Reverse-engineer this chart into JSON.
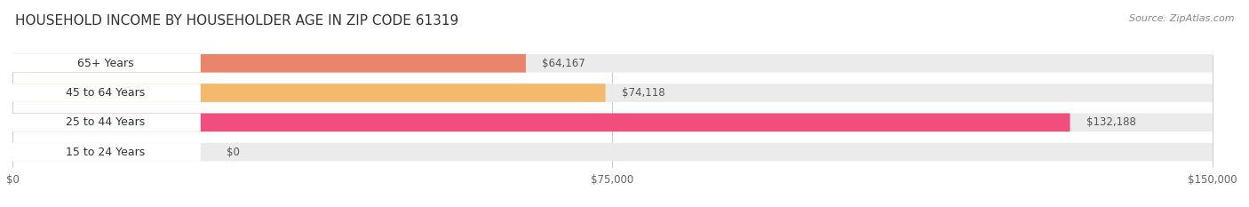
{
  "title": "HOUSEHOLD INCOME BY HOUSEHOLDER AGE IN ZIP CODE 61319",
  "source": "Source: ZipAtlas.com",
  "categories": [
    "15 to 24 Years",
    "25 to 44 Years",
    "45 to 64 Years",
    "65+ Years"
  ],
  "values": [
    0,
    132188,
    74118,
    64167
  ],
  "bar_colors": [
    "#a8a8d8",
    "#f04e7c",
    "#f5b96e",
    "#e8856a"
  ],
  "bar_bg_color": "#f0f0f0",
  "background_color": "#ffffff",
  "label_bg_color": "#ffffff",
  "xlim": [
    0,
    150000
  ],
  "xtick_values": [
    0,
    75000,
    150000
  ],
  "xtick_labels": [
    "$0",
    "$75,000",
    "$150,000"
  ],
  "value_label_color": "#555555",
  "title_fontsize": 11,
  "source_fontsize": 8,
  "tick_fontsize": 8.5,
  "bar_label_fontsize": 9,
  "value_label_fontsize": 8.5
}
